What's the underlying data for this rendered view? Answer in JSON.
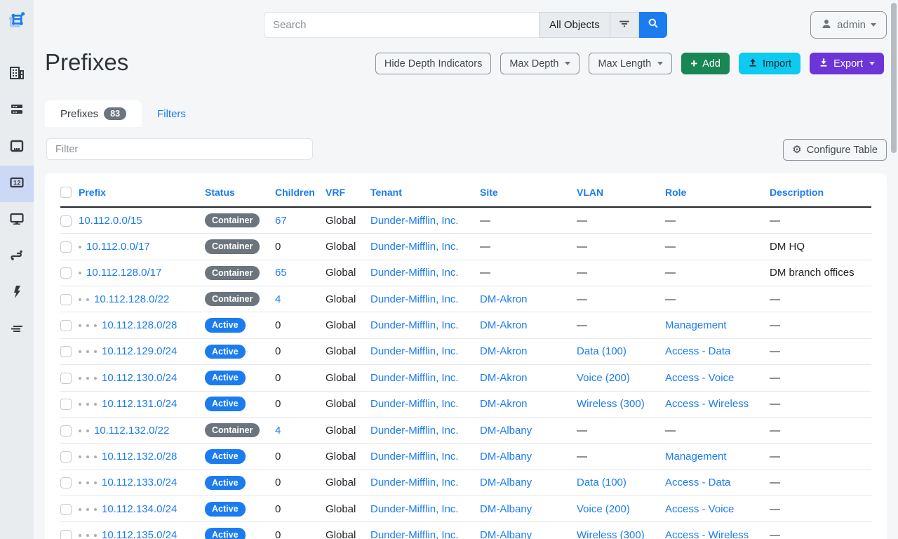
{
  "topbar": {
    "search_placeholder": "Search",
    "scope_button": "All Objects",
    "user": "admin"
  },
  "sidebar": {
    "active_index": 3,
    "items": [
      {
        "icon": "building-icon"
      },
      {
        "icon": "server-rack-icon"
      },
      {
        "icon": "ethernet-port-icon"
      },
      {
        "icon": "counter-ipam-icon"
      },
      {
        "icon": "monitor-icon"
      },
      {
        "icon": "route-cable-icon"
      },
      {
        "icon": "lightning-bolt-icon"
      },
      {
        "icon": "lines-icon"
      }
    ]
  },
  "page": {
    "title": "Prefixes",
    "actions": {
      "hide_depth": "Hide Depth Indicators",
      "max_depth": "Max Depth",
      "max_length": "Max Length",
      "add": "Add",
      "import": "Import",
      "export": "Export"
    },
    "tabs": [
      {
        "label": "Prefixes",
        "count": "83",
        "active": true
      },
      {
        "label": "Filters",
        "active": false
      }
    ],
    "filter_placeholder": "Filter",
    "configure_table": "Configure Table"
  },
  "table": {
    "columns": [
      "Prefix",
      "Status",
      "Children",
      "VRF",
      "Tenant",
      "Site",
      "VLAN",
      "Role",
      "Description"
    ],
    "rows": [
      {
        "depth": 0,
        "prefix": "10.112.0.0/15",
        "status": "Container",
        "children": "67",
        "vrf": "Global",
        "tenant": "Dunder-Mifflin, Inc.",
        "site": "—",
        "vlan": "—",
        "role": "—",
        "description": "—"
      },
      {
        "depth": 1,
        "prefix": "10.112.0.0/17",
        "status": "Container",
        "children": "0",
        "vrf": "Global",
        "tenant": "Dunder-Mifflin, Inc.",
        "site": "—",
        "vlan": "—",
        "role": "—",
        "description": "DM HQ"
      },
      {
        "depth": 1,
        "prefix": "10.112.128.0/17",
        "status": "Container",
        "children": "65",
        "vrf": "Global",
        "tenant": "Dunder-Mifflin, Inc.",
        "site": "—",
        "vlan": "—",
        "role": "—",
        "description": "DM branch offices"
      },
      {
        "depth": 2,
        "prefix": "10.112.128.0/22",
        "status": "Container",
        "children": "4",
        "vrf": "Global",
        "tenant": "Dunder-Mifflin, Inc.",
        "site": "DM-Akron",
        "vlan": "—",
        "role": "—",
        "description": "—"
      },
      {
        "depth": 3,
        "prefix": "10.112.128.0/28",
        "status": "Active",
        "children": "0",
        "vrf": "Global",
        "tenant": "Dunder-Mifflin, Inc.",
        "site": "DM-Akron",
        "vlan": "—",
        "role": "Management",
        "description": "—"
      },
      {
        "depth": 3,
        "prefix": "10.112.129.0/24",
        "status": "Active",
        "children": "0",
        "vrf": "Global",
        "tenant": "Dunder-Mifflin, Inc.",
        "site": "DM-Akron",
        "vlan": "Data (100)",
        "role": "Access - Data",
        "description": "—"
      },
      {
        "depth": 3,
        "prefix": "10.112.130.0/24",
        "status": "Active",
        "children": "0",
        "vrf": "Global",
        "tenant": "Dunder-Mifflin, Inc.",
        "site": "DM-Akron",
        "vlan": "Voice (200)",
        "role": "Access - Voice",
        "description": "—"
      },
      {
        "depth": 3,
        "prefix": "10.112.131.0/24",
        "status": "Active",
        "children": "0",
        "vrf": "Global",
        "tenant": "Dunder-Mifflin, Inc.",
        "site": "DM-Akron",
        "vlan": "Wireless (300)",
        "role": "Access - Wireless",
        "description": "—"
      },
      {
        "depth": 2,
        "prefix": "10.112.132.0/22",
        "status": "Container",
        "children": "4",
        "vrf": "Global",
        "tenant": "Dunder-Mifflin, Inc.",
        "site": "DM-Albany",
        "vlan": "—",
        "role": "—",
        "description": "—"
      },
      {
        "depth": 3,
        "prefix": "10.112.132.0/28",
        "status": "Active",
        "children": "0",
        "vrf": "Global",
        "tenant": "Dunder-Mifflin, Inc.",
        "site": "DM-Albany",
        "vlan": "—",
        "role": "Management",
        "description": "—"
      },
      {
        "depth": 3,
        "prefix": "10.112.133.0/24",
        "status": "Active",
        "children": "0",
        "vrf": "Global",
        "tenant": "Dunder-Mifflin, Inc.",
        "site": "DM-Albany",
        "vlan": "Data (100)",
        "role": "Access - Data",
        "description": "—"
      },
      {
        "depth": 3,
        "prefix": "10.112.134.0/24",
        "status": "Active",
        "children": "0",
        "vrf": "Global",
        "tenant": "Dunder-Mifflin, Inc.",
        "site": "DM-Albany",
        "vlan": "Voice (200)",
        "role": "Access - Voice",
        "description": "—"
      },
      {
        "depth": 3,
        "prefix": "10.112.135.0/24",
        "status": "Active",
        "children": "0",
        "vrf": "Global",
        "tenant": "Dunder-Mifflin, Inc.",
        "site": "DM-Albany",
        "vlan": "Wireless (300)",
        "role": "Access - Wireless",
        "description": "—"
      }
    ]
  },
  "colors": {
    "accent_blue": "#1b7cf0",
    "status_container": "#6c757d",
    "status_active": "#1b7cf0",
    "add_green": "#198754",
    "import_cyan": "#0dcaf0",
    "export_purple": "#6d35d8",
    "sidebar_active_bg": "#ccd8f6"
  }
}
